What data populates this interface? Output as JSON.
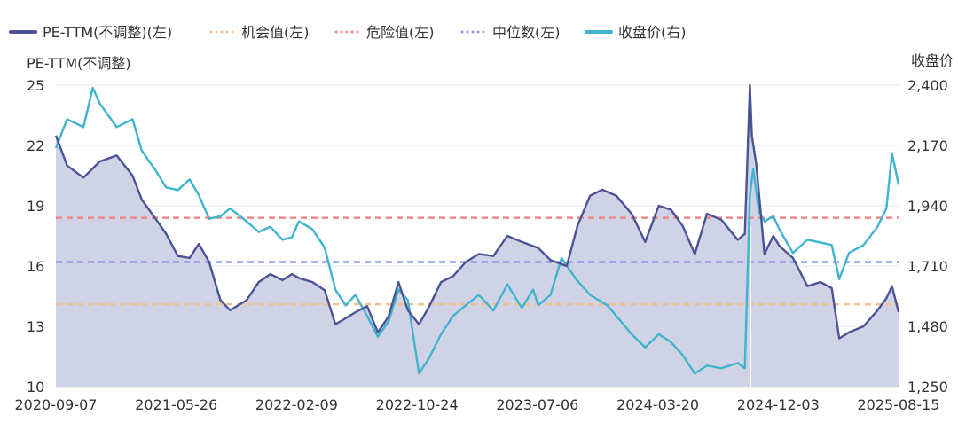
{
  "chart_data": {
    "type": "line",
    "title": "",
    "legend": {
      "placement": "top",
      "items": [
        {
          "label": "PE-TTM(不调整)(左)",
          "color": "#4a5494",
          "style": "solid"
        },
        {
          "label": "机会值(左)",
          "color": "#f6c08a",
          "style": "dotted"
        },
        {
          "label": "危险值(左)",
          "color": "#ee8a86",
          "style": "dotted"
        },
        {
          "label": "中位数(左)",
          "color": "#8b98f2",
          "style": "dotted"
        },
        {
          "label": "收盘价(右)",
          "color": "#3fb4ce",
          "style": "solid"
        }
      ]
    },
    "left_axis": {
      "title": "PE-TTM(不调整)",
      "ticks": [
        10,
        13,
        16,
        19,
        22,
        25
      ],
      "ylim": [
        10,
        25
      ]
    },
    "right_axis": {
      "title": "收盘价",
      "ticks": [
        "1,250",
        "1,480",
        "1,710",
        "1,940",
        "2,170",
        "2,400"
      ],
      "tick_values": [
        1250,
        1480,
        1710,
        1940,
        2170,
        2400
      ],
      "ylim": [
        1250,
        2400
      ]
    },
    "x_axis": {
      "tick_labels": [
        "2020-09-07",
        "2021-05-26",
        "2022-02-09",
        "2022-10-24",
        "2023-07-06",
        "2024-03-20",
        "2024-12-03",
        "2025-08-15"
      ],
      "range": [
        "2020-09-07",
        "2025-08-15"
      ]
    },
    "reference_lines": [
      {
        "name": "机会值(左)",
        "value": 14.1,
        "color": "#f6c08a"
      },
      {
        "name": "危险值(左)",
        "value": 18.4,
        "color": "#ee8a86"
      },
      {
        "name": "中位数(左)",
        "value": 16.2,
        "color": "#8b98f2"
      }
    ],
    "grid": true,
    "series": [
      {
        "name": "PE-TTM(不调整)(左)",
        "axis": "left",
        "color": "#4a5494",
        "fill": "#c8cbe0",
        "points": [
          [
            "2020-09-07",
            22.5
          ],
          [
            "2020-10-01",
            21.0
          ],
          [
            "2020-11-05",
            20.4
          ],
          [
            "2020-12-10",
            21.2
          ],
          [
            "2021-01-15",
            21.5
          ],
          [
            "2021-02-18",
            20.5
          ],
          [
            "2021-03-10",
            19.3
          ],
          [
            "2021-04-10",
            18.3
          ],
          [
            "2021-05-01",
            17.6
          ],
          [
            "2021-05-26",
            16.5
          ],
          [
            "2021-06-20",
            16.4
          ],
          [
            "2021-07-10",
            17.1
          ],
          [
            "2021-08-01",
            16.2
          ],
          [
            "2021-08-25",
            14.3
          ],
          [
            "2021-09-15",
            13.8
          ],
          [
            "2021-10-20",
            14.3
          ],
          [
            "2021-11-15",
            15.2
          ],
          [
            "2021-12-10",
            15.6
          ],
          [
            "2022-01-05",
            15.3
          ],
          [
            "2022-01-25",
            15.6
          ],
          [
            "2022-02-09",
            15.4
          ],
          [
            "2022-03-10",
            15.2
          ],
          [
            "2022-04-05",
            14.8
          ],
          [
            "2022-04-28",
            13.1
          ],
          [
            "2022-05-20",
            13.4
          ],
          [
            "2022-06-10",
            13.7
          ],
          [
            "2022-07-05",
            14.0
          ],
          [
            "2022-07-28",
            12.7
          ],
          [
            "2022-08-20",
            13.5
          ],
          [
            "2022-09-10",
            15.2
          ],
          [
            "2022-09-30",
            13.8
          ],
          [
            "2022-10-24",
            13.1
          ],
          [
            "2022-11-15",
            14.0
          ],
          [
            "2022-12-10",
            15.2
          ],
          [
            "2023-01-05",
            15.5
          ],
          [
            "2023-02-01",
            16.2
          ],
          [
            "2023-03-01",
            16.6
          ],
          [
            "2023-04-01",
            16.5
          ],
          [
            "2023-05-01",
            17.5
          ],
          [
            "2023-06-01",
            17.2
          ],
          [
            "2023-07-06",
            16.9
          ],
          [
            "2023-08-01",
            16.3
          ],
          [
            "2023-09-05",
            16.0
          ],
          [
            "2023-09-28",
            18.0
          ],
          [
            "2023-10-25",
            19.5
          ],
          [
            "2023-11-20",
            19.8
          ],
          [
            "2023-12-20",
            19.5
          ],
          [
            "2024-01-22",
            18.6
          ],
          [
            "2024-02-20",
            17.2
          ],
          [
            "2024-03-20",
            19.0
          ],
          [
            "2024-04-15",
            18.8
          ],
          [
            "2024-05-10",
            18.0
          ],
          [
            "2024-06-05",
            16.6
          ],
          [
            "2024-07-01",
            18.6
          ],
          [
            "2024-08-01",
            18.3
          ],
          [
            "2024-09-05",
            17.3
          ],
          [
            "2024-09-20",
            17.6
          ],
          [
            "2024-10-01",
            25.0
          ],
          [
            "2024-10-05",
            22.5
          ],
          [
            "2024-10-15",
            21.0
          ],
          [
            "2024-11-01",
            16.6
          ],
          [
            "2024-11-20",
            17.5
          ],
          [
            "2024-12-03",
            17.0
          ],
          [
            "2025-01-01",
            16.4
          ],
          [
            "2025-02-01",
            15.0
          ],
          [
            "2025-03-01",
            15.2
          ],
          [
            "2025-03-25",
            14.9
          ],
          [
            "2025-04-10",
            12.4
          ],
          [
            "2025-05-01",
            12.7
          ],
          [
            "2025-06-01",
            13.0
          ],
          [
            "2025-07-01",
            13.8
          ],
          [
            "2025-07-20",
            14.4
          ],
          [
            "2025-08-01",
            15.0
          ],
          [
            "2025-08-15",
            13.7
          ]
        ]
      },
      {
        "name": "收盘价(右)",
        "axis": "right",
        "color": "#3fb4ce",
        "points": [
          [
            "2020-09-07",
            2160
          ],
          [
            "2020-10-01",
            2270
          ],
          [
            "2020-11-05",
            2240
          ],
          [
            "2020-11-25",
            2390
          ],
          [
            "2020-12-10",
            2330
          ],
          [
            "2021-01-15",
            2240
          ],
          [
            "2021-02-18",
            2270
          ],
          [
            "2021-03-10",
            2150
          ],
          [
            "2021-04-10",
            2070
          ],
          [
            "2021-05-01",
            2010
          ],
          [
            "2021-05-26",
            2000
          ],
          [
            "2021-06-20",
            2040
          ],
          [
            "2021-07-10",
            1980
          ],
          [
            "2021-08-01",
            1890
          ],
          [
            "2021-08-25",
            1900
          ],
          [
            "2021-09-15",
            1930
          ],
          [
            "2021-10-20",
            1880
          ],
          [
            "2021-11-15",
            1840
          ],
          [
            "2021-12-10",
            1860
          ],
          [
            "2022-01-05",
            1810
          ],
          [
            "2022-01-25",
            1820
          ],
          [
            "2022-02-09",
            1880
          ],
          [
            "2022-03-10",
            1850
          ],
          [
            "2022-04-05",
            1780
          ],
          [
            "2022-04-28",
            1620
          ],
          [
            "2022-05-20",
            1560
          ],
          [
            "2022-06-10",
            1600
          ],
          [
            "2022-07-05",
            1520
          ],
          [
            "2022-07-28",
            1440
          ],
          [
            "2022-08-20",
            1500
          ],
          [
            "2022-09-10",
            1620
          ],
          [
            "2022-09-30",
            1580
          ],
          [
            "2022-10-24",
            1300
          ],
          [
            "2022-11-15",
            1360
          ],
          [
            "2022-12-10",
            1450
          ],
          [
            "2023-01-05",
            1520
          ],
          [
            "2023-02-01",
            1560
          ],
          [
            "2023-03-01",
            1600
          ],
          [
            "2023-04-01",
            1540
          ],
          [
            "2023-05-01",
            1640
          ],
          [
            "2023-06-01",
            1550
          ],
          [
            "2023-06-25",
            1620
          ],
          [
            "2023-07-06",
            1560
          ],
          [
            "2023-08-01",
            1600
          ],
          [
            "2023-08-25",
            1740
          ],
          [
            "2023-09-25",
            1660
          ],
          [
            "2023-10-25",
            1600
          ],
          [
            "2023-12-01",
            1560
          ],
          [
            "2024-01-22",
            1450
          ],
          [
            "2024-02-20",
            1400
          ],
          [
            "2024-03-20",
            1450
          ],
          [
            "2024-04-15",
            1420
          ],
          [
            "2024-05-10",
            1370
          ],
          [
            "2024-06-05",
            1300
          ],
          [
            "2024-07-01",
            1330
          ],
          [
            "2024-08-01",
            1320
          ],
          [
            "2024-09-05",
            1340
          ],
          [
            "2024-09-20",
            1320
          ],
          [
            "2024-10-01",
            1980
          ],
          [
            "2024-10-08",
            2080
          ],
          [
            "2024-10-20",
            1920
          ],
          [
            "2024-11-01",
            1880
          ],
          [
            "2024-11-20",
            1900
          ],
          [
            "2024-12-03",
            1850
          ],
          [
            "2025-01-01",
            1760
          ],
          [
            "2025-02-01",
            1810
          ],
          [
            "2025-03-01",
            1800
          ],
          [
            "2025-03-25",
            1790
          ],
          [
            "2025-04-10",
            1660
          ],
          [
            "2025-05-01",
            1760
          ],
          [
            "2025-06-01",
            1790
          ],
          [
            "2025-07-01",
            1860
          ],
          [
            "2025-07-20",
            1930
          ],
          [
            "2025-08-01",
            2140
          ],
          [
            "2025-08-15",
            2020
          ]
        ]
      }
    ]
  }
}
